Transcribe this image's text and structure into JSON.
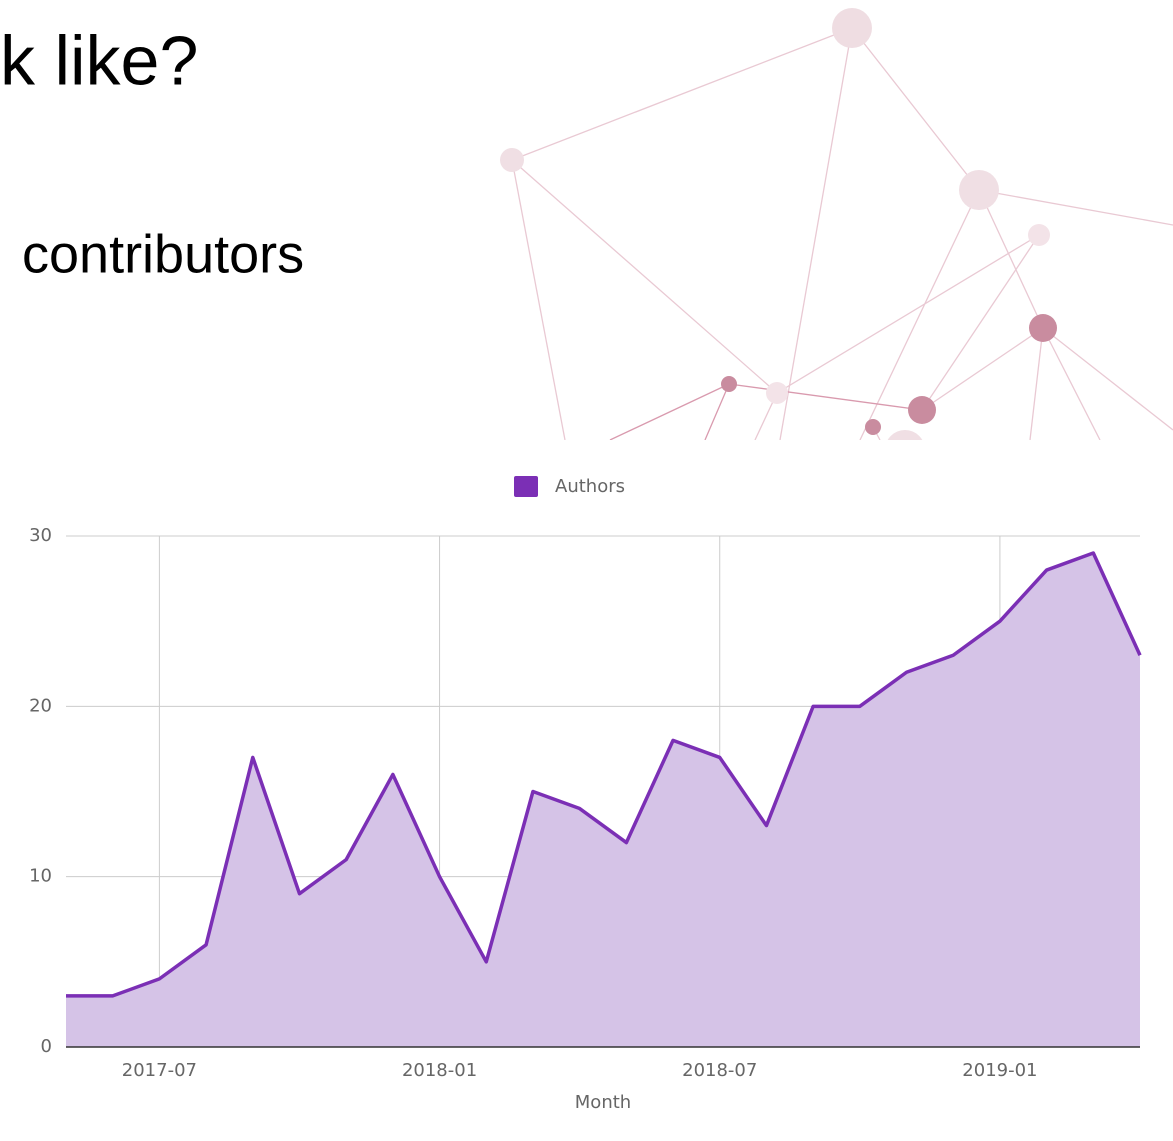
{
  "slide": {
    "heading": "k like?",
    "subheading": "contributors"
  },
  "chart_data": {
    "type": "area",
    "x": [
      "2017-05",
      "2017-06",
      "2017-07",
      "2017-08",
      "2017-09",
      "2017-10",
      "2017-11",
      "2017-12",
      "2018-01",
      "2018-02",
      "2018-03",
      "2018-04",
      "2018-05",
      "2018-06",
      "2018-07",
      "2018-08",
      "2018-09",
      "2018-10",
      "2018-11",
      "2018-12",
      "2019-01",
      "2019-02",
      "2019-03",
      "2019-04"
    ],
    "series": [
      {
        "name": "Authors",
        "color": "#7b2fb5",
        "fill": "#d5c3e7",
        "values": [
          3,
          3,
          4,
          6,
          17,
          9,
          11,
          16,
          10,
          5,
          15,
          14,
          12,
          18,
          17,
          13,
          20,
          20,
          22,
          23,
          25,
          28,
          29,
          23
        ]
      }
    ],
    "xlim": [
      "2017-05",
      "2019-04"
    ],
    "xticks": [
      "2017-07",
      "2018-01",
      "2018-07",
      "2019-01"
    ],
    "ylim": [
      0,
      30
    ],
    "yticks": [
      0,
      10,
      20,
      30
    ],
    "grid": true,
    "xlabel": "Month",
    "legend": "top"
  }
}
